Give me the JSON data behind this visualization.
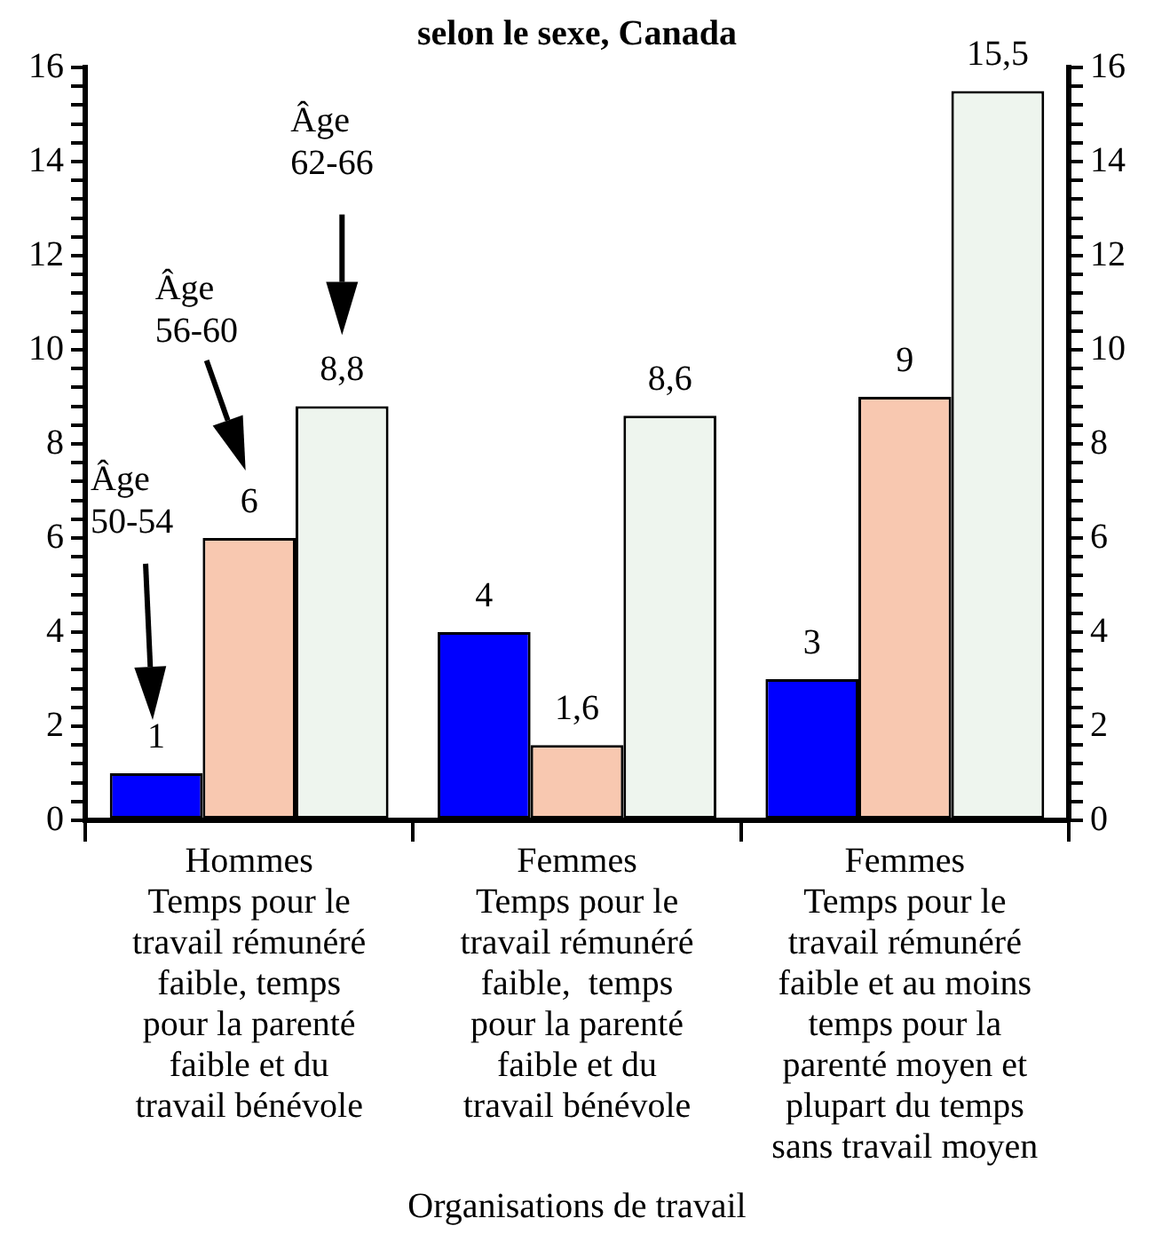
{
  "chart_data": {
    "type": "bar",
    "title": "selon le sexe, Canada",
    "xlabel": "Organisations de travail",
    "categories": [
      "Hommes\nTemps pour le\ntravail rémunéré\nfaible, temps\npour la parenté\nfaible et du\ntravail bénévole",
      "Femmes\nTemps pour le\ntravail rémunéré\nfaible,  temps\npour la parenté\nfaible et du\ntravail bénévole",
      "Femmes\nTemps pour le\ntravail rémunéré\nfaible et au moins\ntemps pour la\nparenté moyen et\nplupart du temps\nsans travail moyen"
    ],
    "series": [
      {
        "color": "#0000ff",
        "values": [
          1,
          4,
          3
        ],
        "value_labels": [
          "1",
          "4",
          "3"
        ]
      },
      {
        "color": "#f8c8b0",
        "values": [
          6,
          1.6,
          9
        ],
        "value_labels": [
          "6",
          "1,6",
          "9"
        ]
      },
      {
        "color": "#eef5ee",
        "values": [
          8.8,
          8.6,
          15.5
        ],
        "value_labels": [
          "8,8",
          "8,6",
          "15,5"
        ]
      }
    ],
    "annotations": [
      "Âge\n50-54",
      "Âge\n56-60",
      "Âge\n62-66"
    ],
    "ylim": [
      0,
      16
    ],
    "yticks": [
      0,
      {
        "value": 0.4,
        "label": null
      },
      {
        "value": 0.8,
        "label": null
      },
      {
        "value": 1.2,
        "label": null
      },
      {
        "value": 1.6,
        "label": null
      },
      2,
      {
        "value": 2.4,
        "label": null
      },
      {
        "value": 2.8,
        "label": null
      },
      {
        "value": 3.2,
        "label": null
      },
      {
        "value": 3.6,
        "label": null
      },
      4,
      {
        "value": 4.4,
        "label": null
      },
      {
        "value": 4.8,
        "label": null
      },
      {
        "value": 5.2,
        "label": null
      },
      {
        "value": 5.6,
        "label": null
      },
      6,
      {
        "value": 6.4,
        "label": null
      },
      {
        "value": 6.8,
        "label": null
      },
      {
        "value": 7.2,
        "label": null
      },
      {
        "value": 7.6,
        "label": null
      },
      8,
      {
        "value": 8.4,
        "label": null
      },
      {
        "value": 8.8,
        "label": null
      },
      {
        "value": 9.2,
        "label": null
      },
      {
        "value": 9.6,
        "label": null
      },
      10,
      {
        "value": 10.4,
        "label": null
      },
      {
        "value": 10.8,
        "label": null
      },
      {
        "value": 11.2,
        "label": null
      },
      {
        "value": 11.6,
        "label": null
      },
      12,
      {
        "value": 12.4,
        "label": null
      },
      {
        "value": 12.8,
        "label": null
      },
      {
        "value": 13.2,
        "label": null
      },
      {
        "value": 13.6,
        "label": null
      },
      14,
      {
        "value": 14.4,
        "label": null
      },
      {
        "value": 14.8,
        "label": null
      },
      {
        "value": 15.2,
        "label": null
      },
      {
        "value": 15.6,
        "label": null
      },
      16
    ],
    "y2lim": [
      0,
      16
    ],
    "y2ticks": [
      0,
      {
        "value": 0.4,
        "label": null
      },
      {
        "value": 0.8,
        "label": null
      },
      {
        "value": 1.2,
        "label": null
      },
      {
        "value": 1.6,
        "label": null
      },
      2,
      {
        "value": 2.4,
        "label": null
      },
      {
        "value": 2.8,
        "label": null
      },
      {
        "value": 3.2,
        "label": null
      },
      {
        "value": 3.6,
        "label": null
      },
      4,
      {
        "value": 4.4,
        "label": null
      },
      {
        "value": 4.8,
        "label": null
      },
      {
        "value": 5.2,
        "label": null
      },
      {
        "value": 5.6,
        "label": null
      },
      6,
      {
        "value": 6.4,
        "label": null
      },
      {
        "value": 6.8,
        "label": null
      },
      {
        "value": 7.2,
        "label": null
      },
      {
        "value": 7.6,
        "label": null
      },
      8,
      {
        "value": 8.4,
        "label": null
      },
      {
        "value": 8.8,
        "label": null
      },
      {
        "value": 9.2,
        "label": null
      },
      {
        "value": 9.6,
        "label": null
      },
      10,
      {
        "value": 10.4,
        "label": null
      },
      {
        "value": 10.8,
        "label": null
      },
      {
        "value": 11.2,
        "label": null
      },
      {
        "value": 11.6,
        "label": null
      },
      12,
      {
        "value": 12.4,
        "label": null
      },
      {
        "value": 12.8,
        "label": null
      },
      {
        "value": 13.2,
        "label": null
      },
      {
        "value": 13.6,
        "label": null
      },
      14,
      {
        "value": 14.4,
        "label": null
      },
      {
        "value": 14.8,
        "label": null
      },
      {
        "value": 15.2,
        "label": null
      },
      {
        "value": 15.6,
        "label": null
      },
      16
    ],
    "grid": false,
    "legend": false
  }
}
